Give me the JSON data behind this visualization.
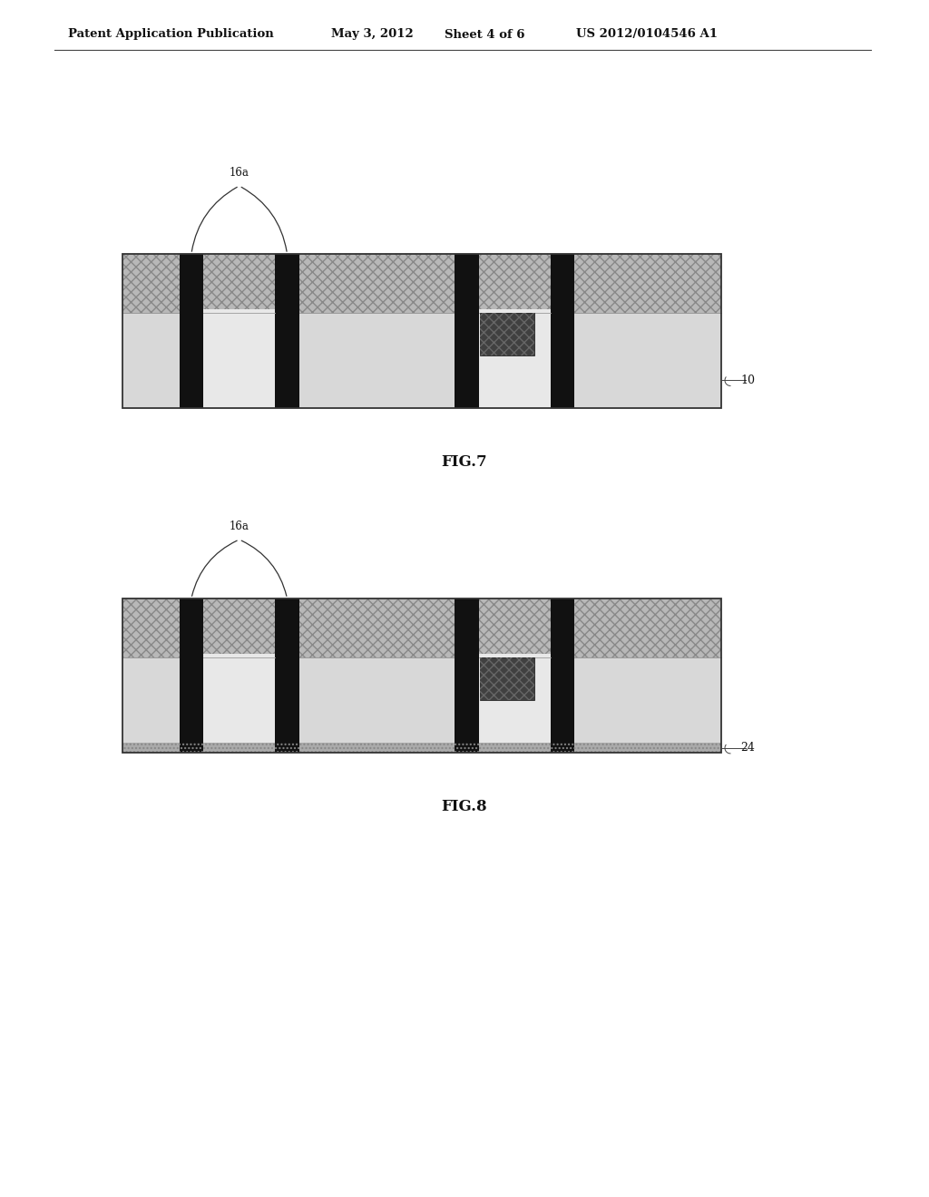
{
  "background_color": "#ffffff",
  "header_text": "Patent Application Publication",
  "header_date": "May 3, 2012",
  "header_sheet": "Sheet 4 of 6",
  "header_patent": "US 2012/0104546 A1",
  "fig7_label": "FIG.7",
  "fig8_label": "FIG.8",
  "label_16a": "16a",
  "label_10": "10",
  "label_24": "24"
}
